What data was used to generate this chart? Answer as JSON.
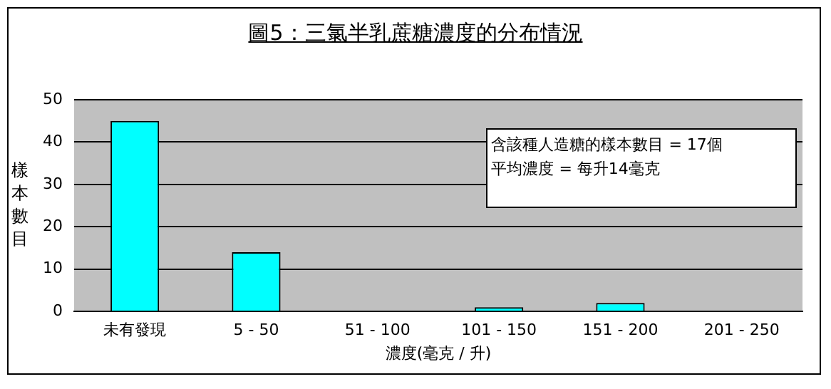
{
  "chart_data": {
    "type": "bar",
    "title": "圖5：三氯半乳蔗糖濃度的分布情況",
    "xlabel": "濃度(毫克 / 升)",
    "ylabel": "樣本數目",
    "categories": [
      "未有發現",
      "5 - 50",
      "51 - 100",
      "101 - 150",
      "151 - 200",
      "201 - 250"
    ],
    "values": [
      45,
      14,
      0,
      1,
      2,
      0
    ],
    "color": "#00ffff",
    "ylim": [
      0,
      50
    ],
    "yticks": [
      0,
      10,
      20,
      30,
      40,
      50
    ],
    "grid": "y",
    "legend": false,
    "annotations": [
      "含該種人造糖的樣本數目 = 17個",
      "平均濃度 = 每升14毫克"
    ]
  }
}
